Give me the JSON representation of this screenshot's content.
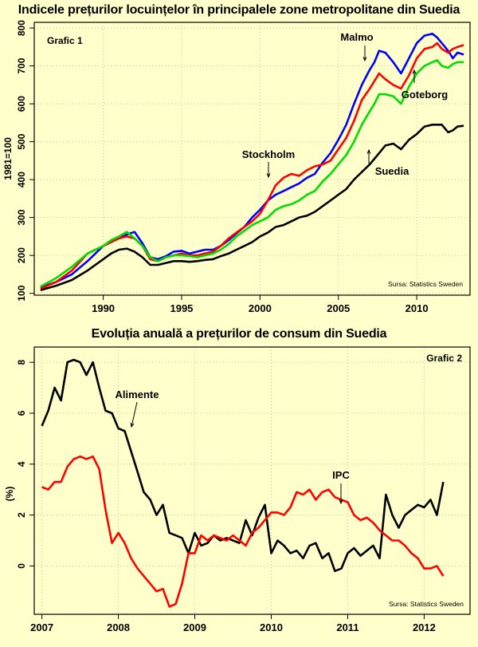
{
  "chart_data": [
    {
      "type": "line",
      "title": "Indicele prețurilor locuințelor în principalele zone metropolitane din Suedia",
      "panel_label": "Grafic 1",
      "ylabel": "1981=100",
      "source": "Sursa: Statistics Sweden",
      "xlim": [
        1985.6,
        2013.4
      ],
      "ylim": [
        95,
        815
      ],
      "xticks": [
        1990,
        1995,
        2000,
        2005,
        2010
      ],
      "yticks": [
        100,
        200,
        300,
        400,
        500,
        600,
        700,
        800
      ],
      "grid": true,
      "series": [
        {
          "name": "Malmo",
          "color": "#0000ff",
          "x": [
            1986,
            1987,
            1988,
            1989,
            1990,
            1990.5,
            1991,
            1991.5,
            1992,
            1992.5,
            1993,
            1993.5,
            1994,
            1994.5,
            1995,
            1995.5,
            1996,
            1996.5,
            1997,
            1997.5,
            1998,
            1998.5,
            1999,
            1999.5,
            2000,
            2000.5,
            2001,
            2001.5,
            2002,
            2002.5,
            2003,
            2003.5,
            2004,
            2004.5,
            2005,
            2005.5,
            2006,
            2006.5,
            2007,
            2007.3,
            2007.6,
            2008,
            2008.5,
            2009,
            2009.5,
            2010,
            2010.5,
            2011,
            2011.3,
            2011.6,
            2012,
            2012.3,
            2012.6,
            2013
          ],
          "y": [
            115,
            130,
            150,
            185,
            225,
            235,
            245,
            255,
            262,
            232,
            195,
            190,
            198,
            210,
            212,
            205,
            210,
            215,
            215,
            225,
            240,
            258,
            275,
            300,
            320,
            345,
            360,
            370,
            380,
            390,
            405,
            415,
            445,
            470,
            505,
            545,
            600,
            650,
            690,
            710,
            740,
            735,
            710,
            680,
            720,
            760,
            780,
            785,
            775,
            760,
            740,
            720,
            735,
            730
          ]
        },
        {
          "name": "Stockholm",
          "color": "#ff0000",
          "x": [
            1986,
            1987,
            1988,
            1989,
            1990,
            1990.5,
            1991,
            1991.5,
            1992,
            1992.5,
            1993,
            1993.5,
            1994,
            1994.5,
            1995,
            1995.5,
            1996,
            1996.5,
            1997,
            1997.5,
            1998,
            1998.5,
            1999,
            1999.5,
            2000,
            2000.5,
            2001,
            2001.5,
            2002,
            2002.5,
            2003,
            2003.5,
            2004,
            2004.5,
            2005,
            2005.5,
            2006,
            2006.5,
            2007,
            2007.3,
            2007.6,
            2008,
            2008.5,
            2009,
            2009.5,
            2010,
            2010.5,
            2011,
            2011.3,
            2011.6,
            2012,
            2012.3,
            2012.6,
            2013
          ],
          "y": [
            112,
            130,
            160,
            205,
            225,
            235,
            245,
            250,
            245,
            225,
            190,
            185,
            195,
            200,
            205,
            200,
            200,
            205,
            210,
            225,
            245,
            260,
            275,
            290,
            310,
            345,
            385,
            405,
            415,
            410,
            425,
            435,
            440,
            450,
            480,
            510,
            555,
            610,
            640,
            660,
            680,
            665,
            650,
            640,
            675,
            720,
            745,
            750,
            760,
            745,
            735,
            745,
            750,
            755
          ]
        },
        {
          "name": "Goteborg",
          "color": "#00dd00",
          "x": [
            1986,
            1987,
            1988,
            1989,
            1990,
            1990.5,
            1991,
            1991.5,
            1992,
            1992.5,
            1993,
            1993.5,
            1994,
            1994.5,
            1995,
            1995.5,
            1996,
            1996.5,
            1997,
            1997.5,
            1998,
            1998.5,
            1999,
            1999.5,
            2000,
            2000.5,
            2001,
            2001.5,
            2002,
            2002.5,
            2003,
            2003.5,
            2004,
            2004.5,
            2005,
            2005.5,
            2006,
            2006.5,
            2007,
            2007.3,
            2007.6,
            2008,
            2008.5,
            2009,
            2009.5,
            2010,
            2010.5,
            2011,
            2011.3,
            2011.6,
            2012,
            2012.3,
            2012.6,
            2013
          ],
          "y": [
            118,
            140,
            170,
            205,
            225,
            240,
            250,
            262,
            245,
            225,
            195,
            185,
            195,
            200,
            200,
            198,
            195,
            200,
            205,
            215,
            230,
            250,
            265,
            280,
            290,
            300,
            320,
            330,
            335,
            345,
            360,
            370,
            395,
            415,
            440,
            465,
            500,
            545,
            580,
            600,
            625,
            625,
            620,
            600,
            645,
            680,
            700,
            710,
            715,
            700,
            695,
            705,
            710,
            710
          ]
        },
        {
          "name": "Suedia",
          "color": "#000000",
          "x": [
            1986,
            1987,
            1988,
            1989,
            1990,
            1990.5,
            1991,
            1991.5,
            1992,
            1992.5,
            1993,
            1993.5,
            1994,
            1994.5,
            1995,
            1995.5,
            1996,
            1996.5,
            1997,
            1997.5,
            1998,
            1998.5,
            1999,
            1999.5,
            2000,
            2000.5,
            2001,
            2001.5,
            2002,
            2002.5,
            2003,
            2003.5,
            2004,
            2004.5,
            2005,
            2005.5,
            2006,
            2006.5,
            2007,
            2007.3,
            2007.6,
            2008,
            2008.5,
            2009,
            2009.5,
            2010,
            2010.5,
            2011,
            2011.3,
            2011.6,
            2012,
            2012.3,
            2012.6,
            2013
          ],
          "y": [
            108,
            120,
            135,
            160,
            190,
            205,
            215,
            218,
            210,
            195,
            175,
            175,
            180,
            185,
            185,
            183,
            185,
            188,
            190,
            198,
            205,
            215,
            225,
            235,
            250,
            260,
            275,
            280,
            290,
            300,
            305,
            315,
            330,
            345,
            360,
            375,
            400,
            420,
            440,
            455,
            470,
            490,
            495,
            480,
            505,
            520,
            540,
            545,
            545,
            545,
            525,
            530,
            540,
            542
          ]
        }
      ],
      "annotations": [
        "Malmo",
        "Stockholm",
        "Goteborg",
        "Suedia"
      ]
    },
    {
      "type": "line",
      "title": "Evoluția anuală a prețurilor de consum din Suedia",
      "panel_label": "Grafic 2",
      "ylabel": "(%)",
      "source": "Sursa: Statistics Sweden",
      "xlim": [
        2006.9,
        2012.6
      ],
      "ylim": [
        -1.9,
        8.6
      ],
      "xticks": [
        2007,
        2008,
        2009,
        2010,
        2011,
        2012
      ],
      "yticks": [
        0,
        2,
        4,
        6,
        8
      ],
      "grid": true,
      "series": [
        {
          "name": "Alimente",
          "color": "#000000",
          "x": [
            2007.0,
            2007.083,
            2007.167,
            2007.25,
            2007.333,
            2007.417,
            2007.5,
            2007.583,
            2007.667,
            2007.75,
            2007.833,
            2007.917,
            2008.0,
            2008.083,
            2008.167,
            2008.25,
            2008.333,
            2008.417,
            2008.5,
            2008.583,
            2008.667,
            2008.75,
            2008.833,
            2008.917,
            2009.0,
            2009.083,
            2009.167,
            2009.25,
            2009.333,
            2009.417,
            2009.5,
            2009.583,
            2009.667,
            2009.75,
            2009.833,
            2009.917,
            2010.0,
            2010.083,
            2010.167,
            2010.25,
            2010.333,
            2010.417,
            2010.5,
            2010.583,
            2010.667,
            2010.75,
            2010.833,
            2010.917,
            2011.0,
            2011.083,
            2011.167,
            2011.25,
            2011.333,
            2011.417,
            2011.5,
            2011.583,
            2011.667,
            2011.75,
            2011.833,
            2011.917,
            2012.0,
            2012.083,
            2012.167,
            2012.25
          ],
          "y": [
            5.5,
            6.1,
            7.0,
            6.5,
            8.0,
            8.1,
            8.0,
            7.5,
            8.0,
            7.0,
            6.1,
            6.0,
            5.4,
            5.3,
            4.5,
            3.7,
            2.9,
            2.6,
            2.0,
            2.4,
            1.3,
            1.2,
            1.1,
            0.5,
            1.3,
            0.8,
            0.9,
            1.2,
            1.0,
            1.1,
            1.0,
            0.9,
            1.8,
            1.2,
            1.9,
            2.4,
            0.5,
            1.0,
            0.8,
            0.5,
            0.6,
            0.3,
            0.8,
            0.9,
            0.3,
            0.5,
            -0.2,
            -0.1,
            0.5,
            0.7,
            0.4,
            0.6,
            0.8,
            0.3,
            2.8,
            2.0,
            1.5,
            2.0,
            2.2,
            2.4,
            2.3,
            2.6,
            2.0,
            3.3
          ]
        },
        {
          "name": "IPC",
          "color": "#ff0000",
          "x": [
            2007.0,
            2007.083,
            2007.167,
            2007.25,
            2007.333,
            2007.417,
            2007.5,
            2007.583,
            2007.667,
            2007.75,
            2007.833,
            2007.917,
            2008.0,
            2008.083,
            2008.167,
            2008.25,
            2008.333,
            2008.417,
            2008.5,
            2008.583,
            2008.667,
            2008.75,
            2008.833,
            2008.917,
            2009.0,
            2009.083,
            2009.167,
            2009.25,
            2009.333,
            2009.417,
            2009.5,
            2009.583,
            2009.667,
            2009.75,
            2009.833,
            2009.917,
            2010.0,
            2010.083,
            2010.167,
            2010.25,
            2010.333,
            2010.417,
            2010.5,
            2010.583,
            2010.667,
            2010.75,
            2010.833,
            2010.917,
            2011.0,
            2011.083,
            2011.167,
            2011.25,
            2011.333,
            2011.417,
            2011.5,
            2011.583,
            2011.667,
            2011.75,
            2011.833,
            2011.917,
            2012.0,
            2012.083,
            2012.167,
            2012.25
          ],
          "y": [
            3.1,
            3.0,
            3.3,
            3.3,
            3.9,
            4.2,
            4.3,
            4.2,
            4.3,
            3.8,
            2.2,
            0.9,
            1.3,
            0.9,
            0.3,
            -0.1,
            -0.4,
            -0.7,
            -1.0,
            -0.9,
            -1.6,
            -1.5,
            -0.7,
            0.5,
            0.5,
            1.2,
            1.0,
            1.2,
            1.1,
            1.0,
            1.2,
            1.0,
            0.8,
            1.3,
            1.5,
            1.8,
            2.1,
            2.1,
            2.0,
            2.3,
            2.9,
            2.8,
            3.0,
            2.6,
            2.9,
            3.0,
            2.7,
            2.6,
            2.5,
            2.0,
            1.8,
            1.9,
            1.7,
            1.4,
            1.2,
            1.0,
            1.0,
            0.8,
            0.5,
            0.3,
            -0.1,
            -0.1,
            0.0,
            -0.4
          ]
        }
      ],
      "annotations": [
        "Alimente",
        "IPC"
      ]
    }
  ]
}
